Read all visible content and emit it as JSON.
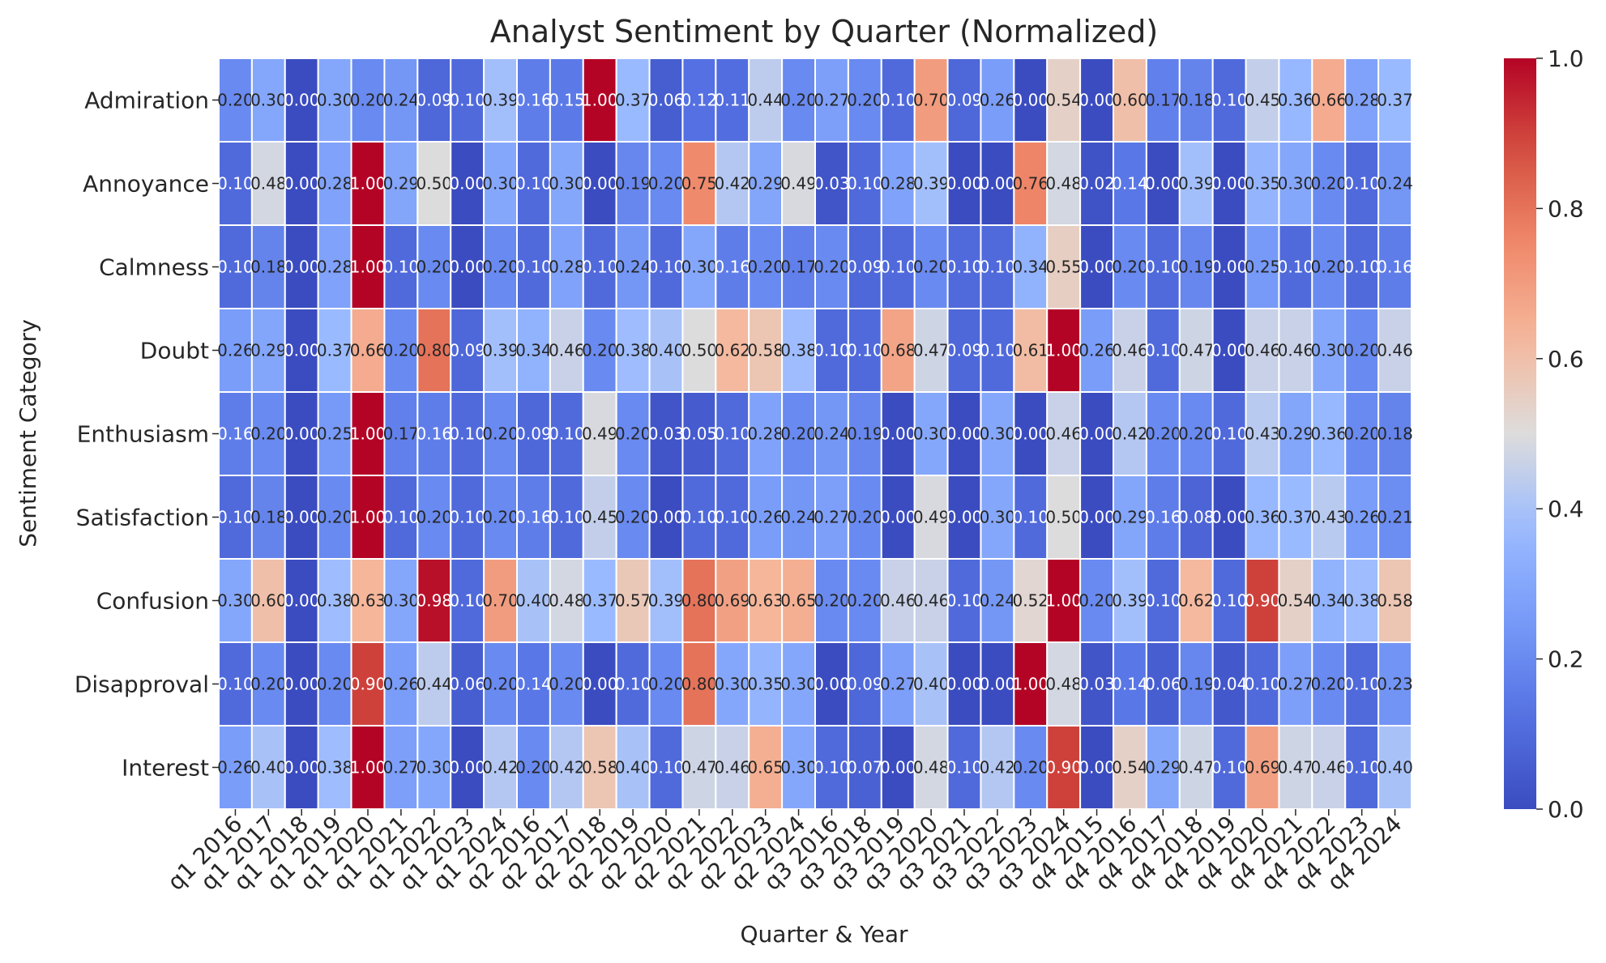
{
  "chart_data": {
    "type": "heatmap",
    "title": "Analyst Sentiment by Quarter (Normalized)",
    "xlabel": "Quarter & Year",
    "ylabel": "Sentiment Category",
    "colormap": "coolwarm",
    "vmin": 0,
    "vmax": 1,
    "colorbar_ticks": [
      "0.0",
      "0.2",
      "0.4",
      "0.6",
      "0.8",
      "1.0"
    ],
    "x": [
      "q1 2016",
      "q1 2017",
      "q1 2018",
      "q1 2019",
      "q1 2020",
      "q1 2021",
      "q1 2022",
      "q1 2023",
      "q1 2024",
      "q2 2016",
      "q2 2017",
      "q2 2018",
      "q2 2019",
      "q2 2020",
      "q2 2021",
      "q2 2022",
      "q2 2023",
      "q2 2024",
      "q3 2016",
      "q3 2018",
      "q3 2019",
      "q3 2020",
      "q3 2021",
      "q3 2022",
      "q3 2023",
      "q3 2024",
      "q4 2015",
      "q4 2016",
      "q4 2017",
      "q4 2018",
      "q4 2019",
      "q4 2020",
      "q4 2021",
      "q4 2022",
      "q4 2023",
      "q4 2024"
    ],
    "y": [
      "Admiration",
      "Annoyance",
      "Calmness",
      "Doubt",
      "Enthusiasm",
      "Satisfaction",
      "Confusion",
      "Disapproval",
      "Interest"
    ],
    "values": [
      [
        0.2,
        0.3,
        0.0,
        0.3,
        0.2,
        0.24,
        0.09,
        0.1,
        0.39,
        0.16,
        0.15,
        1.0,
        0.37,
        0.06,
        0.12,
        0.11,
        0.44,
        0.2,
        0.27,
        0.2,
        0.1,
        0.7,
        0.09,
        0.26,
        0.0,
        0.54,
        0.0,
        0.6,
        0.17,
        0.18,
        0.1,
        0.45,
        0.36,
        0.66,
        0.28,
        0.37
      ],
      [
        0.1,
        0.48,
        0.0,
        0.28,
        1.0,
        0.29,
        0.5,
        0.0,
        0.3,
        0.1,
        0.3,
        0.0,
        0.19,
        0.2,
        0.75,
        0.42,
        0.29,
        0.49,
        0.03,
        0.1,
        0.28,
        0.39,
        0.0,
        0.0,
        0.76,
        0.48,
        0.02,
        0.14,
        0.0,
        0.39,
        0.0,
        0.35,
        0.3,
        0.2,
        0.1,
        0.24
      ],
      [
        0.1,
        0.18,
        0.0,
        0.28,
        1.0,
        0.1,
        0.2,
        0.0,
        0.2,
        0.1,
        0.28,
        0.1,
        0.24,
        0.1,
        0.3,
        0.16,
        0.2,
        0.17,
        0.2,
        0.09,
        0.1,
        0.2,
        0.1,
        0.1,
        0.34,
        0.55,
        0.0,
        0.2,
        0.1,
        0.19,
        0.0,
        0.25,
        0.1,
        0.2,
        0.1,
        0.16
      ],
      [
        0.26,
        0.29,
        0.0,
        0.37,
        0.66,
        0.2,
        0.8,
        0.09,
        0.39,
        0.34,
        0.46,
        0.2,
        0.38,
        0.4,
        0.5,
        0.62,
        0.58,
        0.38,
        0.1,
        0.1,
        0.68,
        0.47,
        0.09,
        0.1,
        0.61,
        1.0,
        0.26,
        0.46,
        0.1,
        0.47,
        0.0,
        0.46,
        0.46,
        0.3,
        0.2,
        0.46
      ],
      [
        0.16,
        0.2,
        0.0,
        0.25,
        1.0,
        0.17,
        0.16,
        0.1,
        0.2,
        0.09,
        0.1,
        0.49,
        0.2,
        0.03,
        0.05,
        0.1,
        0.28,
        0.2,
        0.24,
        0.19,
        0.0,
        0.3,
        0.0,
        0.3,
        0.0,
        0.46,
        0.0,
        0.42,
        0.2,
        0.2,
        0.1,
        0.43,
        0.29,
        0.36,
        0.2,
        0.18
      ],
      [
        0.1,
        0.18,
        0.0,
        0.2,
        1.0,
        0.1,
        0.2,
        0.1,
        0.2,
        0.16,
        0.1,
        0.45,
        0.2,
        0.0,
        0.1,
        0.1,
        0.26,
        0.24,
        0.27,
        0.2,
        0.0,
        0.49,
        0.0,
        0.3,
        0.1,
        0.5,
        0.0,
        0.29,
        0.16,
        0.08,
        0.0,
        0.36,
        0.37,
        0.43,
        0.26,
        0.21
      ],
      [
        0.3,
        0.6,
        0.0,
        0.38,
        0.63,
        0.3,
        0.98,
        0.1,
        0.7,
        0.4,
        0.48,
        0.37,
        0.57,
        0.39,
        0.8,
        0.69,
        0.63,
        0.65,
        0.2,
        0.2,
        0.46,
        0.46,
        0.1,
        0.24,
        0.52,
        1.0,
        0.2,
        0.39,
        0.1,
        0.62,
        0.1,
        0.9,
        0.54,
        0.34,
        0.38,
        0.58
      ],
      [
        0.1,
        0.2,
        0.0,
        0.2,
        0.9,
        0.26,
        0.44,
        0.06,
        0.2,
        0.14,
        0.2,
        0.0,
        0.1,
        0.2,
        0.8,
        0.3,
        0.35,
        0.3,
        0.0,
        0.09,
        0.27,
        0.4,
        0.0,
        0.0,
        1.0,
        0.48,
        0.03,
        0.14,
        0.06,
        0.19,
        0.04,
        0.1,
        0.27,
        0.2,
        0.1,
        0.23
      ],
      [
        0.26,
        0.4,
        0.0,
        0.38,
        1.0,
        0.27,
        0.3,
        0.0,
        0.42,
        0.2,
        0.42,
        0.58,
        0.4,
        0.1,
        0.47,
        0.46,
        0.65,
        0.3,
        0.1,
        0.07,
        0.0,
        0.48,
        0.1,
        0.42,
        0.2,
        0.9,
        0.0,
        0.54,
        0.29,
        0.47,
        0.1,
        0.69,
        0.47,
        0.46,
        0.1,
        0.4
      ]
    ]
  }
}
